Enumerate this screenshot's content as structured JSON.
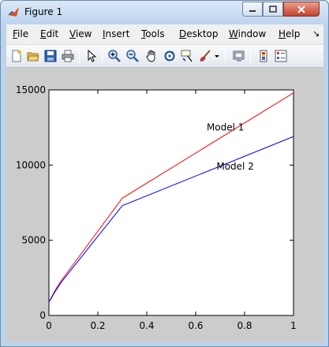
{
  "window": {
    "title": "Figure 1"
  },
  "menubar": {
    "items": [
      "File",
      "Edit",
      "View",
      "Insert",
      "Tools",
      "Desktop",
      "Window",
      "Help"
    ],
    "overflow_glyph": "↘"
  },
  "toolbar": {
    "tools": [
      "new-figure-icon",
      "open-file-icon",
      "save-icon",
      "print-icon",
      "pointer-icon",
      "zoom-in-icon",
      "zoom-out-icon",
      "pan-icon",
      "rotate-3d-icon",
      "data-cursor-icon",
      "brush-icon",
      "brush-dropdown-icon",
      "link-plot-icon",
      "colorbar-icon",
      "legend-icon"
    ]
  },
  "colors": {
    "model1": "#ff0000",
    "model2": "#0000ff",
    "figure_bg": "#cccccc",
    "axes_bg": "#ffffff"
  },
  "plot": {
    "x_ticks": [
      "0",
      "0.2",
      "0.4",
      "0.6",
      "0.8",
      "1"
    ],
    "y_ticks": [
      "0",
      "5000",
      "10000",
      "15000"
    ],
    "annotations": [
      "Model 1",
      "Model 2"
    ]
  },
  "chart_data": {
    "type": "line",
    "xlim": [
      0,
      1
    ],
    "ylim": [
      0,
      15000
    ],
    "grid": false,
    "series": [
      {
        "name": "Model 1",
        "color": "#ff0000",
        "x": [
          0,
          0.01,
          0.02,
          0.03,
          0.05,
          0.3,
          1
        ],
        "y": [
          900,
          1200,
          1500,
          1800,
          2300,
          7800,
          14800
        ]
      },
      {
        "name": "Model 2",
        "color": "#0000ff",
        "x": [
          0,
          0.01,
          0.02,
          0.03,
          0.05,
          0.3,
          1
        ],
        "y": [
          900,
          1150,
          1450,
          1700,
          2200,
          7300,
          11900
        ]
      }
    ]
  }
}
